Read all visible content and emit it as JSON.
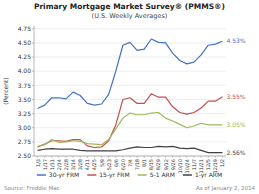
{
  "chart_data": {
    "type": "line",
    "title": "Primary Mortgage Market Survey® (PMMS®)",
    "subtitle": "(U.S. Weekly Averages)",
    "y_label": "(Percent)",
    "categories": [
      "1/3",
      "1/17",
      "1/31",
      "2/14",
      "2/28",
      "3/14",
      "3/28",
      "4/11",
      "4/25",
      "5/9",
      "5/23",
      "6/6",
      "6/20",
      "7/4",
      "7/18",
      "8/1",
      "8/15",
      "8/29",
      "9/12",
      "9/26",
      "10/10",
      "10/24",
      "11/7",
      "11/21",
      "12/5",
      "12/19",
      "1/2"
    ],
    "series": [
      {
        "name": "30-yr FRM",
        "color": "#4472c4",
        "values": [
          3.34,
          3.4,
          3.53,
          3.53,
          3.51,
          3.63,
          3.57,
          3.43,
          3.4,
          3.42,
          3.59,
          4.0,
          4.46,
          4.51,
          4.37,
          4.39,
          4.57,
          4.51,
          4.5,
          4.32,
          4.19,
          4.13,
          4.16,
          4.29,
          4.46,
          4.48,
          4.53
        ]
      },
      {
        "name": "15-yr FRM",
        "color": "#c0504d",
        "values": [
          2.66,
          2.71,
          2.77,
          2.77,
          2.76,
          2.79,
          2.79,
          2.68,
          2.65,
          2.66,
          2.77,
          3.05,
          3.5,
          3.53,
          3.43,
          3.43,
          3.6,
          3.54,
          3.54,
          3.37,
          3.27,
          3.24,
          3.27,
          3.35,
          3.47,
          3.47,
          3.55
        ]
      },
      {
        "name": "5-1 ARM",
        "color": "#9bbb59",
        "values": [
          2.67,
          2.7,
          2.79,
          2.74,
          2.75,
          2.77,
          2.76,
          2.72,
          2.71,
          2.7,
          2.79,
          2.98,
          3.17,
          3.26,
          3.23,
          3.23,
          3.26,
          3.27,
          3.17,
          3.12,
          3.06,
          3.0,
          3.03,
          3.08,
          3.05,
          3.05,
          3.05
        ]
      },
      {
        "name": "1-yr ARM",
        "color": "#404040",
        "values": [
          2.6,
          2.62,
          2.63,
          2.62,
          2.62,
          2.62,
          2.6,
          2.59,
          2.59,
          2.59,
          2.59,
          2.59,
          2.61,
          2.64,
          2.66,
          2.65,
          2.65,
          2.67,
          2.66,
          2.67,
          2.64,
          2.63,
          2.64,
          2.6,
          2.56,
          2.56,
          2.56
        ]
      }
    ],
    "annotations": [
      "4.53%",
      "3.55%",
      "3.05%",
      "2.56%"
    ],
    "source": "Source: Freddie Mac",
    "note": "As of January 2, 2014",
    "ylim": [
      2.5,
      4.8
    ],
    "yticks": [
      {
        "value": 2.5,
        "label": "2.50"
      },
      2.75,
      {
        "value": 3.0,
        "label": "3.00"
      },
      3.25,
      {
        "value": 3.5,
        "label": "3.50"
      },
      3.75,
      {
        "value": 4.0,
        "label": "4.00"
      },
      4.25,
      {
        "value": 4.5,
        "label": "4.50"
      },
      4.75
    ],
    "grid": true,
    "legend": "bottom"
  }
}
